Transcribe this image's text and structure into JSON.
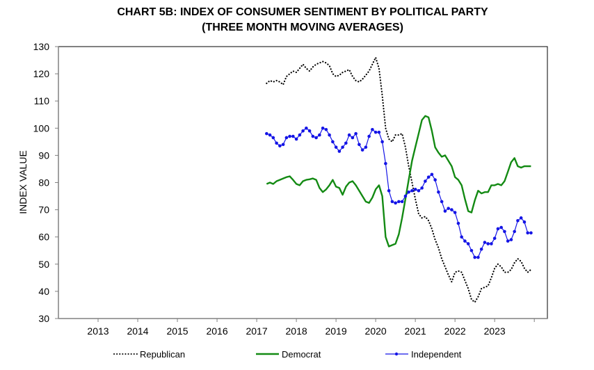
{
  "chart_data": {
    "type": "line",
    "title": "CHART 5B: INDEX OF CONSUMER SENTIMENT BY POLITICAL PARTY",
    "subtitle": "(THREE MONTH MOVING AVERAGES)",
    "xlabel": "",
    "ylabel": "INDEX VALUE",
    "xlim": [
      2012,
      2024.33
    ],
    "ylim": [
      30,
      130
    ],
    "y_ticks": [
      30,
      40,
      50,
      60,
      70,
      80,
      90,
      100,
      110,
      120,
      130
    ],
    "x_tick_labels": [
      "2013",
      "2014",
      "2015",
      "2016",
      "2017",
      "2018",
      "2019",
      "2020",
      "2021",
      "2022",
      "2023"
    ],
    "x_ticks": [
      2013,
      2014,
      2015,
      2016,
      2017,
      2018,
      2019,
      2020,
      2021,
      2022,
      2023,
      2024
    ],
    "grid": false,
    "legend_position": "bottom",
    "x_start": "2017-04",
    "x_frequency": "monthly",
    "series": [
      {
        "name": "Republican",
        "color": "#000000",
        "style": "dotted",
        "values": [
          116.5,
          117.5,
          117,
          117.5,
          117,
          116,
          119,
          120,
          121,
          120.5,
          122,
          123.5,
          122,
          121,
          122.5,
          123.5,
          124,
          124.5,
          124,
          123,
          120,
          119,
          119.5,
          120.5,
          121,
          121.5,
          119,
          117.5,
          117,
          118,
          119.5,
          121,
          123.5,
          126,
          122,
          112,
          100,
          96,
          95,
          97.5,
          97.5,
          98,
          93,
          86,
          80,
          74,
          68.5,
          67,
          67.5,
          66,
          63,
          59,
          56,
          52,
          49,
          46,
          43.5,
          47,
          47.5,
          47,
          44,
          41,
          37,
          36,
          38,
          41,
          41.5,
          42,
          45,
          48.5,
          50,
          49,
          47,
          47,
          48,
          50.5,
          52,
          51,
          48.5,
          47,
          48
        ]
      },
      {
        "name": "Democrat",
        "color": "#138a13",
        "style": "solid",
        "values": [
          79.5,
          80,
          79.5,
          80.5,
          81,
          81.5,
          82,
          82.3,
          81,
          79.5,
          79,
          80.5,
          81,
          81.2,
          81.5,
          81,
          78,
          76.5,
          77.5,
          79,
          81,
          78.5,
          78,
          75.5,
          78.5,
          80,
          80.5,
          79,
          77,
          75,
          73,
          72.5,
          74.5,
          77.5,
          79,
          75,
          60,
          56.5,
          57,
          57.5,
          61,
          67,
          74,
          81,
          88,
          93,
          98,
          103,
          104.5,
          104,
          99,
          93,
          91,
          89.5,
          90,
          88,
          86,
          82,
          81,
          79,
          74,
          69.5,
          69,
          73.5,
          77,
          76,
          76.5,
          76.5,
          79,
          79,
          79.5,
          79,
          80.5,
          84,
          87.5,
          89,
          86,
          85.5,
          86,
          86,
          86
        ]
      },
      {
        "name": "Independent",
        "color": "#1414e6",
        "style": "solid-markers",
        "values": [
          98,
          97.5,
          96.5,
          94.5,
          93.5,
          94,
          96.5,
          97,
          97,
          96,
          97.5,
          99,
          100,
          99,
          97,
          96.5,
          97.5,
          100,
          99.5,
          97.5,
          95,
          93,
          91.5,
          93,
          94.5,
          97.5,
          96.5,
          98,
          94,
          92,
          93,
          97,
          99.5,
          98.5,
          98.5,
          95,
          87,
          77,
          73,
          72.5,
          73,
          73,
          75,
          76.5,
          77,
          77.5,
          77,
          78,
          80.5,
          82,
          83,
          81,
          76.5,
          73,
          69.5,
          70.5,
          70,
          69,
          65,
          60,
          58.5,
          57.5,
          55,
          52.5,
          52.5,
          55.5,
          58,
          57.5,
          57.5,
          59.5,
          63,
          63.5,
          62,
          58.5,
          59,
          62,
          66,
          67,
          65.5,
          61.5,
          61.5
        ]
      }
    ]
  }
}
